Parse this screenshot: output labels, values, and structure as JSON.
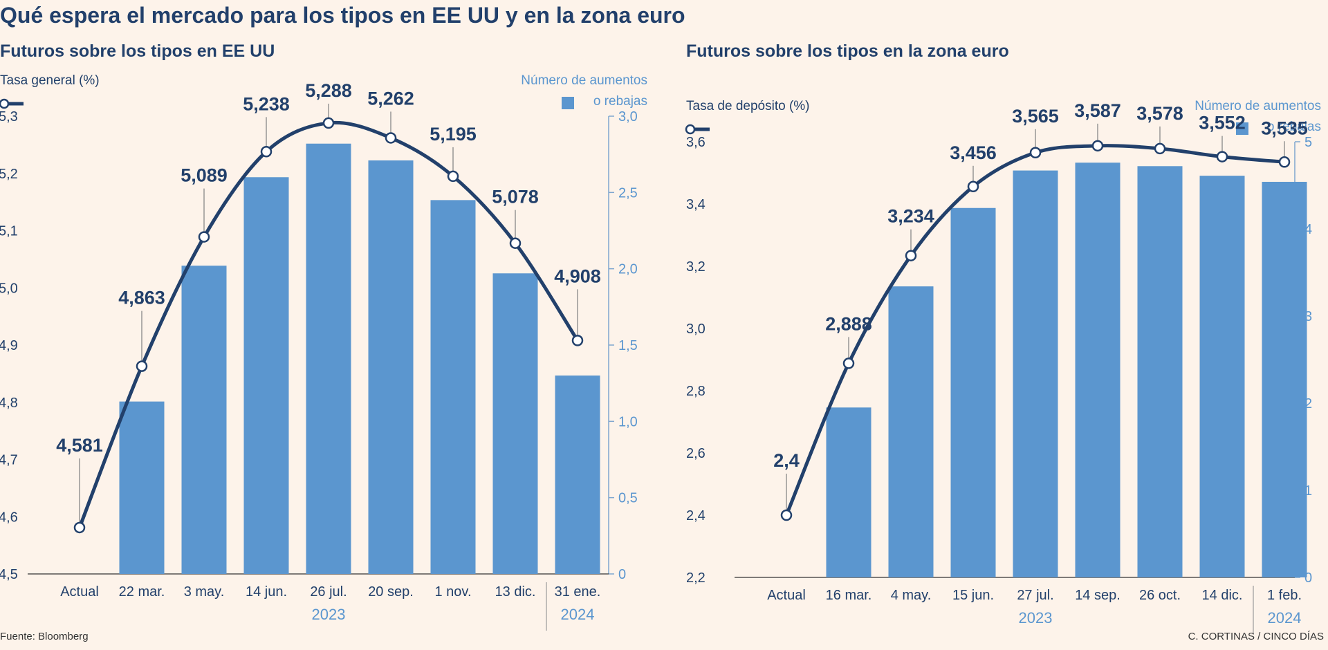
{
  "title": "Qué espera el mercado para los tipos en EE UU y en la zona euro",
  "source": "Fuente: Bloomberg",
  "credit": "C. CORTINAS / CINCO DÍAS",
  "colors": {
    "background": "#fdf3ea",
    "bar": "#5b96cf",
    "line": "#22406b",
    "right_axis": "#5b96cf",
    "text": "#22406b"
  },
  "chart_data": [
    {
      "type": "bar",
      "title": "Futuros sobre los tipos en EE UU",
      "left_axis_label": "Tasa general (%)",
      "right_axis_label_1": "Número de aumentos",
      "right_axis_label_2": "o rebajas",
      "categories": [
        "Actual",
        "22 mar.",
        "3 may.",
        "14 jun.",
        "26 jul.",
        "20 sep.",
        "1 nov.",
        "13 dic.",
        "31 ene."
      ],
      "year_labels": [
        "2023",
        "2024"
      ],
      "line_series": {
        "values": [
          4.581,
          4.863,
          5.089,
          5.238,
          5.288,
          5.262,
          5.195,
          5.078,
          4.908
        ],
        "labels": [
          "4,581",
          "4,863",
          "5,089",
          "5,238",
          "5,288",
          "5,262",
          "5,195",
          "5,078",
          "4,908"
        ]
      },
      "bar_series": {
        "values": [
          null,
          1.13,
          2.02,
          2.6,
          2.82,
          2.71,
          2.45,
          1.97,
          1.3
        ]
      },
      "left_axis": {
        "min": 4.5,
        "max": 5.3,
        "ticks": [
          "4,5",
          "4,6",
          "4,7",
          "4,8",
          "4,9",
          "5,0",
          "5,1",
          "5,2",
          "5,3"
        ]
      },
      "right_axis": {
        "min": 0,
        "max": 3.0,
        "ticks": [
          "0",
          "0,5",
          "1,0",
          "1,5",
          "2,0",
          "2,5",
          "3,0"
        ]
      }
    },
    {
      "type": "bar",
      "title": "Futuros sobre los tipos en la zona euro",
      "left_axis_label": "Tasa de depósito  (%)",
      "right_axis_label_1": "Número de aumentos",
      "right_axis_label_2": "o rebajas",
      "categories": [
        "Actual",
        "16 mar.",
        "4 may.",
        "15 jun.",
        "27 jul.",
        "14 sep.",
        "26 oct.",
        "14 dic.",
        "1 feb."
      ],
      "year_labels": [
        "2023",
        "2024"
      ],
      "line_series": {
        "values": [
          2.4,
          2.888,
          3.234,
          3.456,
          3.565,
          3.587,
          3.578,
          3.552,
          3.535
        ],
        "labels": [
          "2,4",
          "2,888",
          "3,234",
          "3,456",
          "3,565",
          "3,587",
          "3,578",
          "3,552",
          "3,535"
        ]
      },
      "bar_series": {
        "values": [
          null,
          1.95,
          3.34,
          4.24,
          4.67,
          4.76,
          4.72,
          4.61,
          4.54
        ]
      },
      "left_axis": {
        "min": 2.2,
        "max": 3.6,
        "ticks": [
          "2,2",
          "2,4",
          "2,6",
          "2,8",
          "3,0",
          "3,2",
          "3,4",
          "3,6"
        ]
      },
      "right_axis": {
        "min": 0,
        "max": 5,
        "ticks": [
          "0",
          "1",
          "2",
          "3",
          "4",
          "5"
        ]
      }
    }
  ]
}
